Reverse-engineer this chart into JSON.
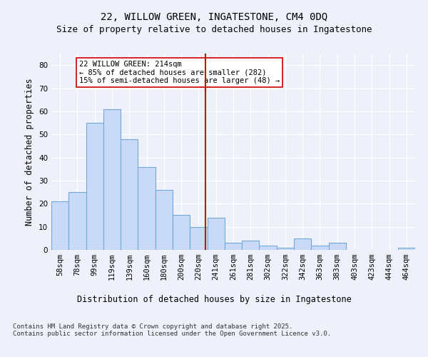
{
  "title_line1": "22, WILLOW GREEN, INGATESTONE, CM4 0DQ",
  "title_line2": "Size of property relative to detached houses in Ingatestone",
  "xlabel": "Distribution of detached houses by size in Ingatestone",
  "ylabel": "Number of detached properties",
  "categories": [
    "58sqm",
    "78sqm",
    "99sqm",
    "119sqm",
    "139sqm",
    "160sqm",
    "180sqm",
    "200sqm",
    "220sqm",
    "241sqm",
    "261sqm",
    "281sqm",
    "302sqm",
    "322sqm",
    "342sqm",
    "363sqm",
    "383sqm",
    "403sqm",
    "423sqm",
    "444sqm",
    "464sqm"
  ],
  "values": [
    21,
    25,
    55,
    61,
    48,
    36,
    26,
    15,
    10,
    14,
    3,
    4,
    2,
    1,
    5,
    2,
    3,
    0,
    0,
    0,
    1
  ],
  "bar_color": "#c9daf8",
  "bar_edge_color": "#6fa8dc",
  "vline_x": 8.4,
  "vline_color": "#cc0000",
  "annotation_text": "22 WILLOW GREEN: 214sqm\n← 85% of detached houses are smaller (282)\n15% of semi-detached houses are larger (48) →",
  "annotation_box_edge": "#cc0000",
  "ylim": [
    0,
    85
  ],
  "yticks": [
    0,
    10,
    20,
    30,
    40,
    50,
    60,
    70,
    80
  ],
  "footnote": "Contains HM Land Registry data © Crown copyright and database right 2025.\nContains public sector information licensed under the Open Government Licence v3.0.",
  "bg_color": "#eef1fa",
  "plot_bg_color": "#eef1fa",
  "grid_color": "#ffffff",
  "title_fontsize": 10,
  "subtitle_fontsize": 9,
  "axis_label_fontsize": 8.5,
  "tick_fontsize": 7.5,
  "footnote_fontsize": 6.5
}
